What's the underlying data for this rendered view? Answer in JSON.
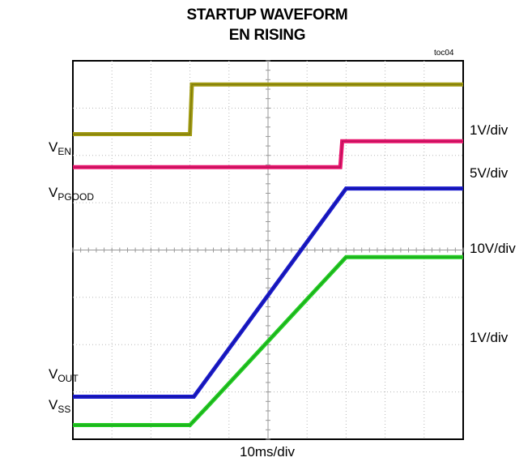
{
  "title_line1": "STARTUP WAVEFORM",
  "title_line2": "EN RISING",
  "figure_tag": "toc04",
  "timebase_label": "10ms/div",
  "colors": {
    "ven": "#a09a10",
    "vpgood": "#e8166e",
    "vout": "#1a1acc",
    "vss": "#22cc22"
  },
  "chart_data": {
    "type": "line",
    "title": "STARTUP WAVEFORM EN RISING",
    "xlabel": "10ms/div",
    "x_divisions": 10,
    "y_divisions": 8,
    "grid": true,
    "series": [
      {
        "name": "VEN",
        "label_main": "V",
        "label_sub": "EN",
        "scale": "1V/div",
        "color": "#a09a10",
        "x_div": [
          0,
          3.0,
          3.05,
          10
        ],
        "y_div": [
          6.45,
          6.45,
          7.5,
          7.5
        ]
      },
      {
        "name": "VPGOOD",
        "label_main": "V",
        "label_sub": "PGOOD",
        "scale": "5V/div",
        "color": "#e8166e",
        "x_div": [
          0,
          6.85,
          6.9,
          10
        ],
        "y_div": [
          5.75,
          5.75,
          6.3,
          6.3
        ]
      },
      {
        "name": "VOUT",
        "label_main": "V",
        "label_sub": "OUT",
        "scale": "10V/div",
        "color": "#1a1acc",
        "x_div": [
          0,
          3.1,
          7.0,
          10
        ],
        "y_div": [
          0.9,
          0.9,
          5.3,
          5.3
        ]
      },
      {
        "name": "VSS",
        "label_main": "V",
        "label_sub": "SS",
        "scale": "1V/div",
        "color": "#22cc22",
        "x_div": [
          0,
          3.0,
          3.4,
          7.0,
          10
        ],
        "y_div": [
          0.3,
          0.3,
          0.65,
          3.85,
          3.85
        ]
      }
    ]
  }
}
